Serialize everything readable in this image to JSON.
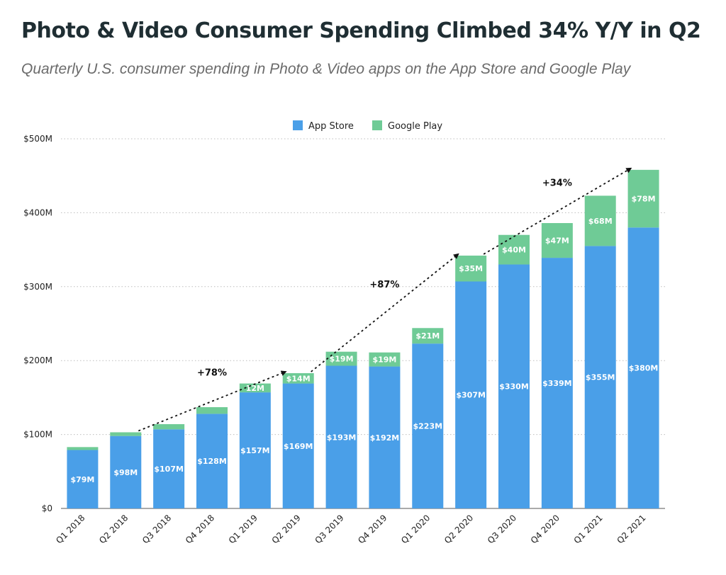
{
  "title": "Photo & Video Consumer Spending Climbed 34% Y/Y in Q2",
  "subtitle": "Quarterly U.S. consumer spending in Photo & Video apps on the App Store and Google Play",
  "colors": {
    "app_store": "#4a9fe8",
    "google_play": "#6fcb96"
  },
  "chart_data": {
    "type": "bar",
    "stacked": true,
    "categories": [
      "Q1 2018",
      "Q2 2018",
      "Q3 2018",
      "Q4 2018",
      "Q1 2019",
      "Q2 2019",
      "Q3 2019",
      "Q4 2019",
      "Q1 2020",
      "Q2 2020",
      "Q3 2020",
      "Q4 2020",
      "Q1 2021",
      "Q2 2021"
    ],
    "series": [
      {
        "name": "App Store",
        "values": [
          79,
          98,
          107,
          128,
          157,
          169,
          193,
          192,
          223,
          307,
          330,
          339,
          355,
          380
        ],
        "labels": [
          "$79M",
          "$98M",
          "$107M",
          "$128M",
          "$157M",
          "$169M",
          "$193M",
          "$192M",
          "$223M",
          "$307M",
          "$330M",
          "$339M",
          "$355M",
          "$380M"
        ]
      },
      {
        "name": "Google Play",
        "values": [
          4,
          5,
          7,
          9,
          12,
          14,
          19,
          19,
          21,
          35,
          40,
          47,
          68,
          78
        ],
        "labels": [
          "",
          "",
          "",
          "",
          "12M",
          "$14M",
          "$19M",
          "$19M",
          "$21M",
          "$35M",
          "$40M",
          "$47M",
          "$68M",
          "$78M"
        ]
      }
    ],
    "yticks": [
      "$0",
      "$100M",
      "$200M",
      "$300M",
      "$400M",
      "$500M"
    ],
    "ylim": [
      0,
      500
    ],
    "grid": true,
    "legend_position": "top-center",
    "annotations": [
      {
        "text": "+78%",
        "from": "Q2 2018",
        "to": "Q2 2019"
      },
      {
        "text": "+87%",
        "from": "Q2 2019",
        "to": "Q2 2020"
      },
      {
        "text": "+34%",
        "from": "Q2 2020",
        "to": "Q2 2021"
      }
    ]
  }
}
